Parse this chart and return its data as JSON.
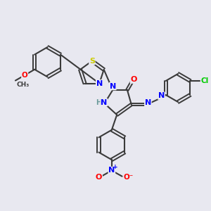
{
  "background_color": "#e8e8f0",
  "bond_color": "#3a3a3a",
  "atom_colors": {
    "N": "#0000ff",
    "O": "#ff0000",
    "S": "#cccc00",
    "Cl": "#00cc00",
    "C": "#3a3a3a",
    "H": "#6a9a9a"
  },
  "figsize": [
    3.0,
    3.0
  ],
  "dpi": 100
}
